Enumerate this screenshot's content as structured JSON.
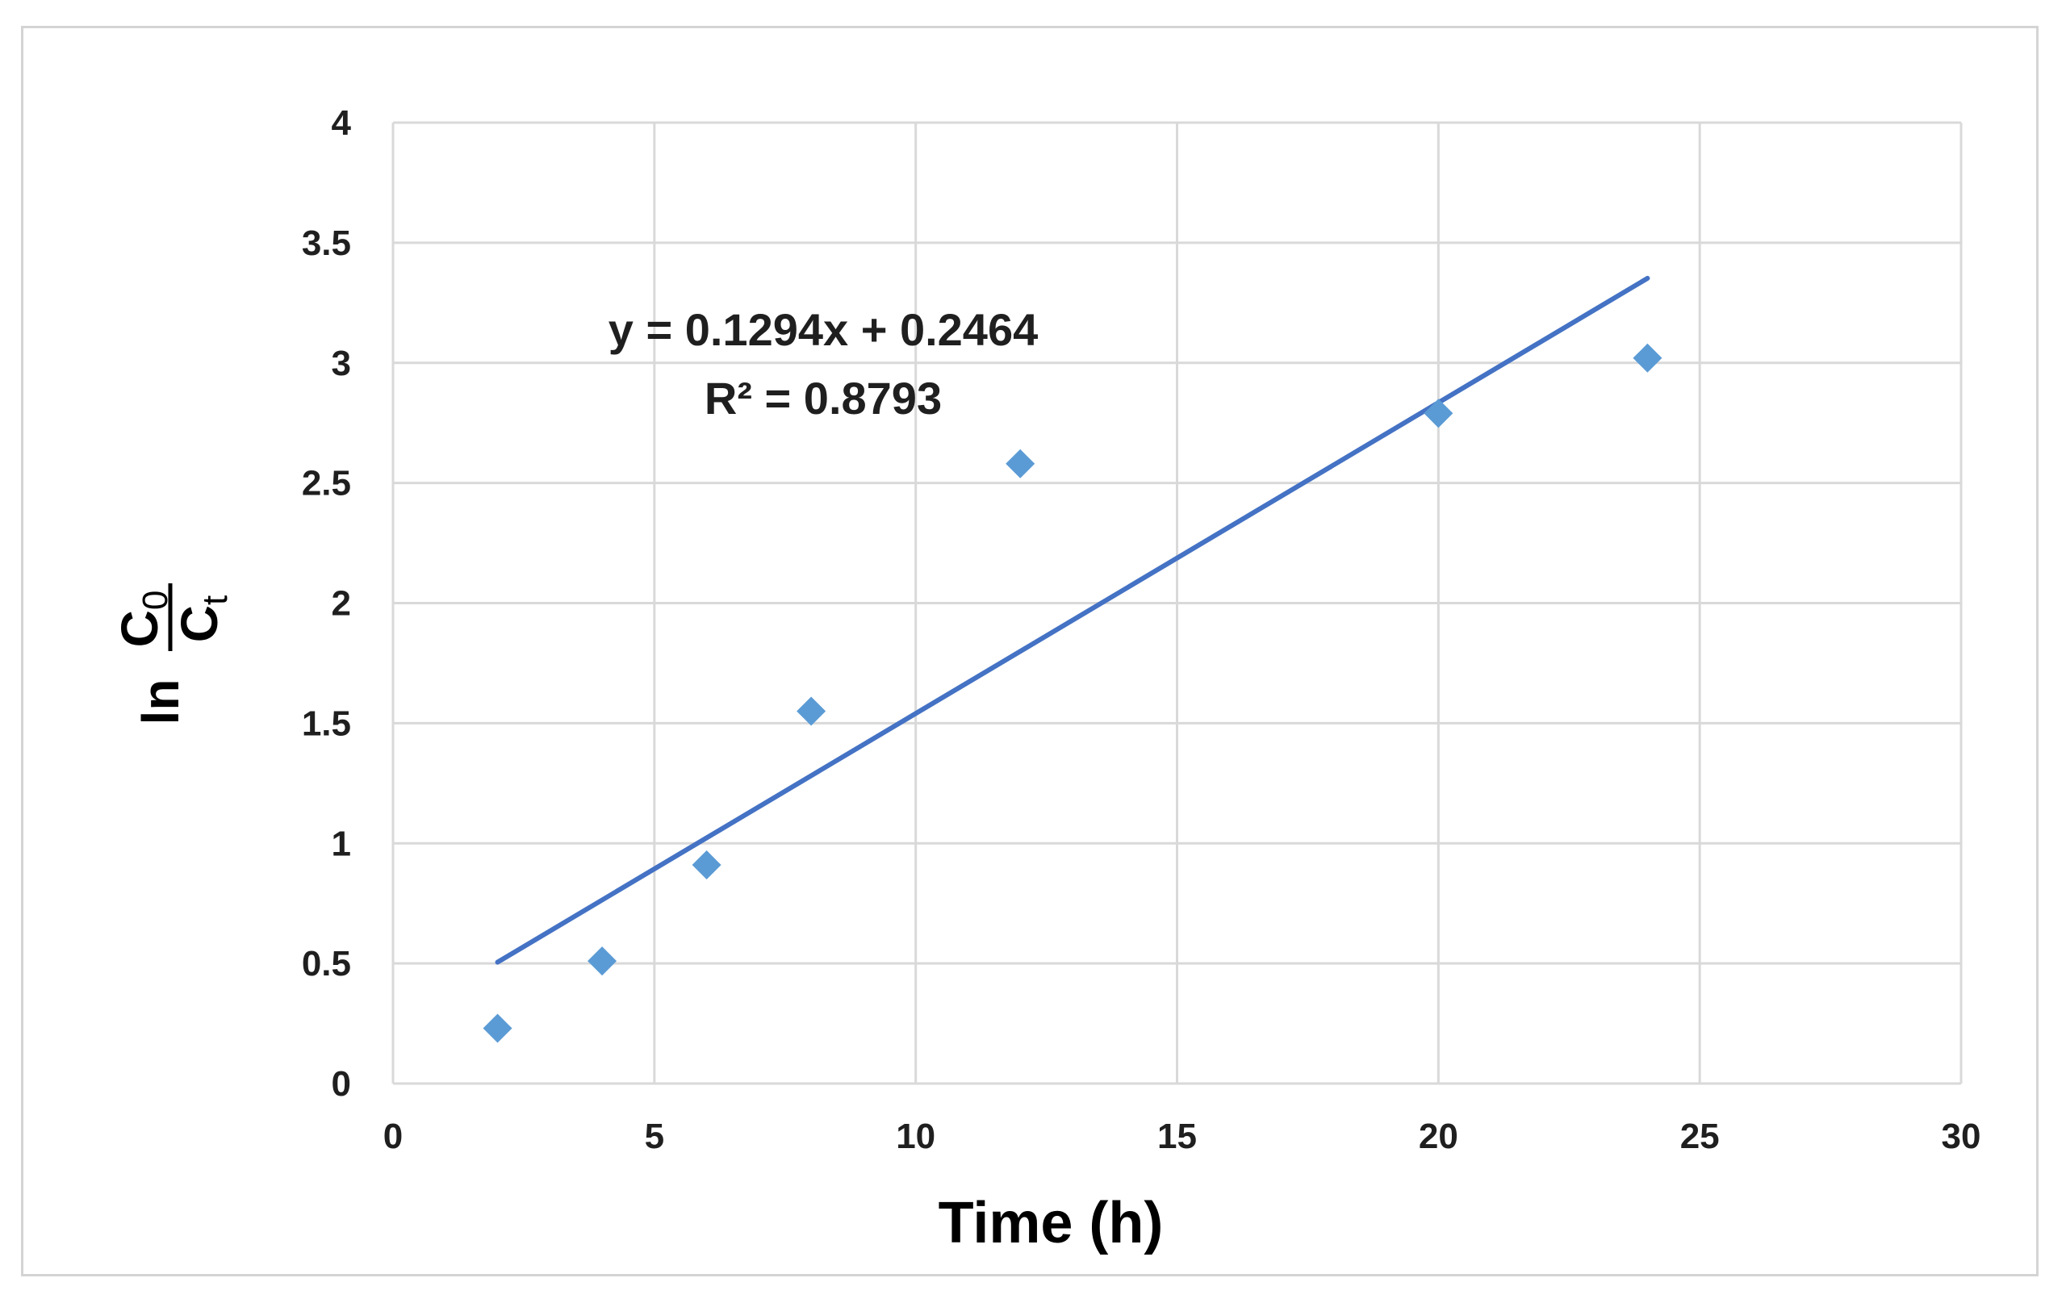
{
  "chart_data": {
    "type": "scatter",
    "title": "",
    "xlabel": "Time (h)",
    "ylabel": {
      "prefix": "ln",
      "numerator": "C",
      "numerator_sub": "0",
      "denominator": "C",
      "denominator_sub": "t"
    },
    "xlim": [
      0,
      30
    ],
    "ylim": [
      0,
      4
    ],
    "x_ticks": [
      0,
      5,
      10,
      15,
      20,
      25,
      30
    ],
    "y_ticks": [
      0,
      0.5,
      1,
      1.5,
      2,
      2.5,
      3,
      3.5,
      4
    ],
    "x_tick_labels": [
      "0",
      "5",
      "10",
      "15",
      "20",
      "25",
      "30"
    ],
    "y_tick_labels": [
      "0",
      "0.5",
      "1",
      "1.5",
      "2",
      "2.5",
      "3",
      "3.5",
      "4"
    ],
    "grid": true,
    "series": [
      {
        "name": "data",
        "marker": "diamond",
        "color": "#5b9bd5",
        "x": [
          2,
          4,
          6,
          8,
          12,
          20,
          24
        ],
        "y": [
          0.23,
          0.51,
          0.91,
          1.55,
          2.58,
          2.79,
          3.02
        ]
      }
    ],
    "trendline": {
      "type": "linear",
      "slope": 0.1294,
      "intercept": 0.2464,
      "x_range": [
        2,
        24
      ],
      "color": "#4472c4",
      "equation": "y = 0.1294x + 0.2464",
      "r_squared": "R² = 0.8793"
    }
  }
}
